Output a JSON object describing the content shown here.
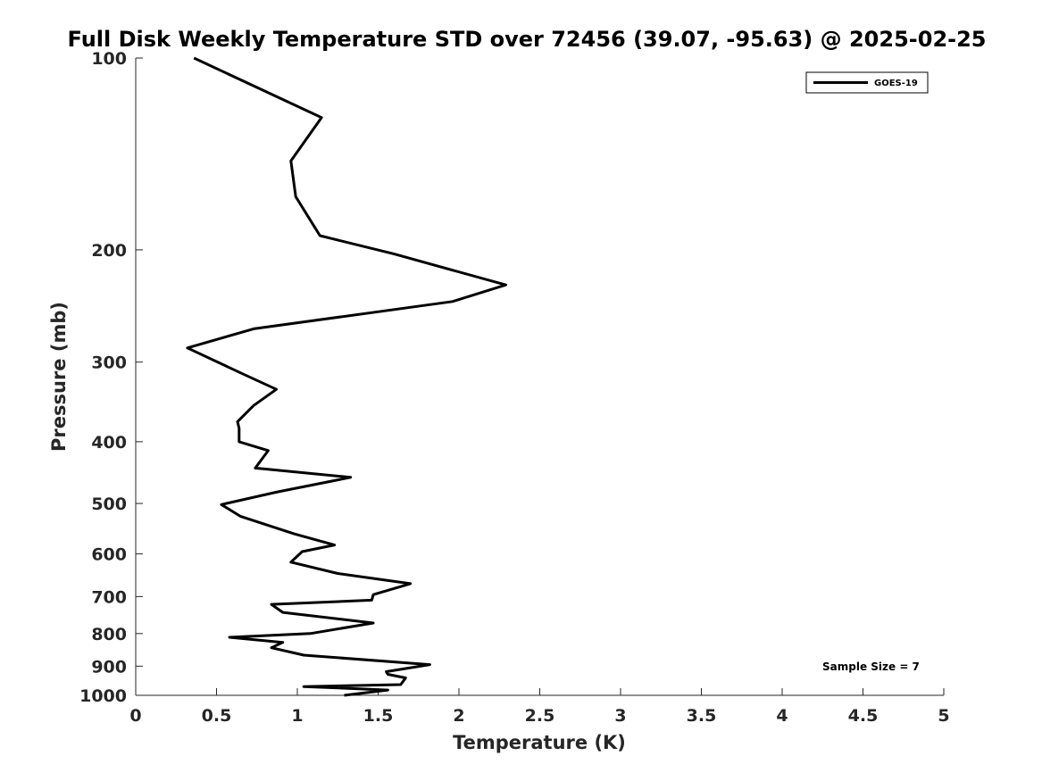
{
  "chart_data": {
    "type": "line",
    "title": "Full Disk Weekly Temperature STD over 72456 (39.07, -95.63) @ 2025-02-25",
    "xlabel": "Temperature (K)",
    "ylabel": "Pressure (mb)",
    "xlim": [
      0,
      5
    ],
    "ylim": [
      1000,
      100
    ],
    "yscale": "log",
    "yaxis_reversed": true,
    "xticks": [
      0,
      0.5,
      1,
      1.5,
      2,
      2.5,
      3,
      3.5,
      4,
      4.5,
      5
    ],
    "xtick_labels": [
      "0",
      "0.5",
      "1",
      "1.5",
      "2",
      "2.5",
      "3",
      "3.5",
      "4",
      "4.5",
      "5"
    ],
    "yticks": [
      100,
      200,
      300,
      400,
      500,
      600,
      700,
      800,
      900,
      1000
    ],
    "ytick_labels": [
      "100",
      "200",
      "300",
      "400",
      "500",
      "600",
      "700",
      "800",
      "900",
      "1000"
    ],
    "grid": false,
    "legend_position": "top-right",
    "series": [
      {
        "name": "GOES-19",
        "color": "#000000",
        "x": [
          0.36,
          1.15,
          0.96,
          0.99,
          1.14,
          1.6,
          2.29,
          1.96,
          0.73,
          0.32,
          0.65,
          0.87,
          0.73,
          0.63,
          0.64,
          0.64,
          0.82,
          0.74,
          1.33,
          0.87,
          0.53,
          0.65,
          0.98,
          1.23,
          1.03,
          0.96,
          1.25,
          1.7,
          1.47,
          1.46,
          0.84,
          0.91,
          1.47,
          1.08,
          0.58,
          0.91,
          0.84,
          1.04,
          1.82,
          1.55,
          1.56,
          1.67,
          1.64,
          1.04,
          1.56,
          1.29
        ],
        "y": [
          100,
          124,
          145,
          165,
          190,
          203,
          227,
          241,
          266,
          285,
          312,
          331,
          351,
          372,
          381,
          400,
          413,
          440,
          455,
          480,
          502,
          524,
          558,
          581,
          595,
          618,
          644,
          668,
          695,
          709,
          720,
          741,
          770,
          800,
          811,
          826,
          842,
          865,
          895,
          918,
          927,
          939,
          962,
          969,
          981,
          1000
        ]
      }
    ],
    "annotations": [
      {
        "text": "Sample Size = 7"
      }
    ]
  }
}
